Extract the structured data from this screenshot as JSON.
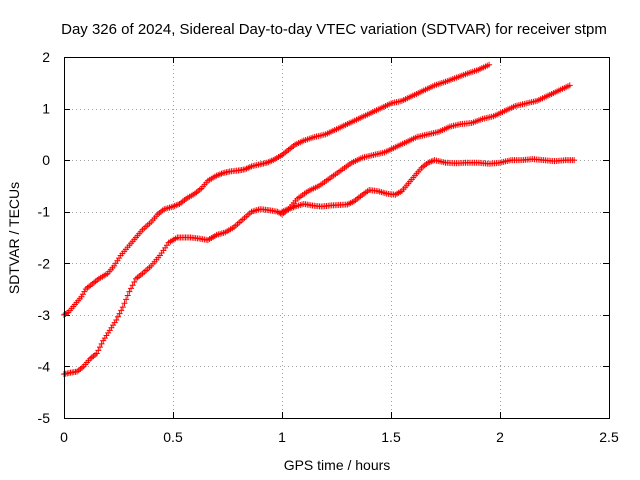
{
  "chart_data": {
    "type": "scatter",
    "title": "Day 326 of 2024, Sidereal Day-to-day VTEC variation (SDTVAR) for receiver stpm",
    "xlabel": "GPS time / hours",
    "ylabel": "SDTVAR / TECUs",
    "xlim": [
      0,
      2.5
    ],
    "ylim": [
      -5,
      2
    ],
    "x_ticks": [
      0,
      0.5,
      1,
      1.5,
      2,
      2.5
    ],
    "x_tick_labels": [
      "0",
      "0.5",
      "1",
      "1.5",
      "2",
      "2.5"
    ],
    "y_ticks": [
      2,
      1,
      0,
      -1,
      -2,
      -3,
      -4,
      -5
    ],
    "y_tick_labels": [
      "2",
      "1",
      "0",
      "-1",
      "-2",
      "-3",
      "-4",
      "-5"
    ],
    "grid": true,
    "legend": "none",
    "marker": "+",
    "color": "#ff0000",
    "series": [
      {
        "x": [
          0.0,
          0.02,
          0.05,
          0.08,
          0.1,
          0.13,
          0.16,
          0.2,
          0.23,
          0.26,
          0.3,
          0.33,
          0.36,
          0.4,
          0.43,
          0.46,
          0.5,
          0.53,
          0.56,
          0.6,
          0.63,
          0.66,
          0.7,
          0.73,
          0.76,
          0.8,
          0.83,
          0.86,
          0.9,
          0.93,
          0.96,
          1.0,
          1.03,
          1.06,
          1.1,
          1.15,
          1.2,
          1.25,
          1.3,
          1.35,
          1.4,
          1.45,
          1.5,
          1.55,
          1.6,
          1.65,
          1.7,
          1.75,
          1.8,
          1.85,
          1.9,
          1.95
        ],
        "y": [
          -3.0,
          -2.95,
          -2.8,
          -2.65,
          -2.5,
          -2.4,
          -2.3,
          -2.2,
          -2.05,
          -1.85,
          -1.65,
          -1.5,
          -1.35,
          -1.2,
          -1.05,
          -0.95,
          -0.9,
          -0.85,
          -0.75,
          -0.65,
          -0.55,
          -0.4,
          -0.3,
          -0.25,
          -0.22,
          -0.2,
          -0.18,
          -0.12,
          -0.08,
          -0.05,
          0.0,
          0.1,
          0.2,
          0.3,
          0.38,
          0.45,
          0.5,
          0.6,
          0.7,
          0.8,
          0.9,
          1.0,
          1.1,
          1.15,
          1.25,
          1.35,
          1.45,
          1.52,
          1.6,
          1.68,
          1.75,
          1.85
        ]
      },
      {
        "x": [
          0.0,
          0.03,
          0.06,
          0.09,
          0.12,
          0.15,
          0.18,
          0.21,
          0.24,
          0.27,
          0.3,
          0.33,
          0.36,
          0.4,
          0.44,
          0.48,
          0.52,
          0.55,
          0.58,
          0.62,
          0.66,
          0.7,
          0.74,
          0.78,
          0.82,
          0.86,
          0.9,
          0.94,
          0.98,
          1.0,
          1.03,
          1.07,
          1.12,
          1.17,
          1.22,
          1.27,
          1.32,
          1.37,
          1.42,
          1.47,
          1.52,
          1.57,
          1.62,
          1.67,
          1.72,
          1.77,
          1.82,
          1.87,
          1.92,
          1.97,
          2.02,
          2.07,
          2.12,
          2.17,
          2.22,
          2.27,
          2.32
        ],
        "y": [
          -4.15,
          -4.12,
          -4.1,
          -4.0,
          -3.85,
          -3.75,
          -3.5,
          -3.3,
          -3.1,
          -2.85,
          -2.55,
          -2.3,
          -2.2,
          -2.05,
          -1.85,
          -1.6,
          -1.5,
          -1.5,
          -1.5,
          -1.52,
          -1.55,
          -1.45,
          -1.4,
          -1.3,
          -1.15,
          -1.0,
          -0.95,
          -0.97,
          -1.0,
          -1.05,
          -0.95,
          -0.75,
          -0.6,
          -0.5,
          -0.35,
          -0.2,
          -0.05,
          0.05,
          0.1,
          0.15,
          0.25,
          0.35,
          0.45,
          0.5,
          0.55,
          0.65,
          0.7,
          0.72,
          0.8,
          0.85,
          0.95,
          1.05,
          1.1,
          1.15,
          1.25,
          1.35,
          1.45
        ]
      },
      {
        "x": [
          1.0,
          1.03,
          1.06,
          1.1,
          1.14,
          1.18,
          1.22,
          1.26,
          1.3,
          1.33,
          1.36,
          1.4,
          1.44,
          1.48,
          1.52,
          1.55,
          1.58,
          1.61,
          1.64,
          1.67,
          1.7,
          1.75,
          1.8,
          1.85,
          1.9,
          1.95,
          2.0,
          2.05,
          2.1,
          2.15,
          2.2,
          2.25,
          2.3,
          2.34
        ],
        "y": [
          -1.0,
          -0.95,
          -0.9,
          -0.85,
          -0.88,
          -0.9,
          -0.88,
          -0.87,
          -0.86,
          -0.8,
          -0.7,
          -0.58,
          -0.6,
          -0.65,
          -0.67,
          -0.6,
          -0.45,
          -0.3,
          -0.15,
          -0.05,
          0.0,
          -0.05,
          -0.06,
          -0.05,
          -0.05,
          -0.07,
          -0.05,
          0.0,
          0.0,
          0.02,
          0.0,
          -0.02,
          0.0,
          0.0
        ]
      }
    ]
  }
}
